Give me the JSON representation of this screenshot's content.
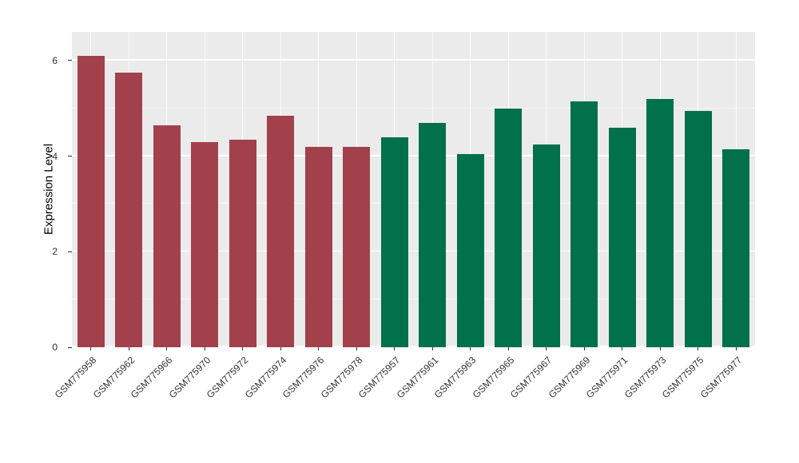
{
  "chart_data": {
    "type": "bar",
    "title": "",
    "xlabel": "",
    "ylabel": "Expression Level",
    "ylim": [
      0,
      6.6
    ],
    "yticks_major": [
      0,
      2,
      4,
      6
    ],
    "yticks_minor": [
      1,
      3,
      5
    ],
    "grid": true,
    "legend": "none",
    "panel_background": "#EBEBEB",
    "grid_color": "#FFFFFF",
    "tick_label_color": "#333333",
    "axis_title_color": "#000000",
    "categories": [
      "GSM775958",
      "GSM775962",
      "GSM775966",
      "GSM775970",
      "GSM775972",
      "GSM775974",
      "GSM775976",
      "GSM775978",
      "GSM775957",
      "GSM775961",
      "GSM775963",
      "GSM775965",
      "GSM775967",
      "GSM775969",
      "GSM775971",
      "GSM775973",
      "GSM775975",
      "GSM775977"
    ],
    "values": [
      6.1,
      5.75,
      4.65,
      4.3,
      4.35,
      4.85,
      4.2,
      4.2,
      4.4,
      4.7,
      4.05,
      5.0,
      4.25,
      5.15,
      4.6,
      5.2,
      4.95,
      4.15
    ],
    "bar_group": [
      "group1",
      "group1",
      "group1",
      "group1",
      "group1",
      "group1",
      "group1",
      "group1",
      "group2",
      "group2",
      "group2",
      "group2",
      "group2",
      "group2",
      "group2",
      "group2",
      "group2",
      "group2"
    ],
    "group_colors": {
      "group1": "#A2414C",
      "group2": "#00714B"
    }
  }
}
